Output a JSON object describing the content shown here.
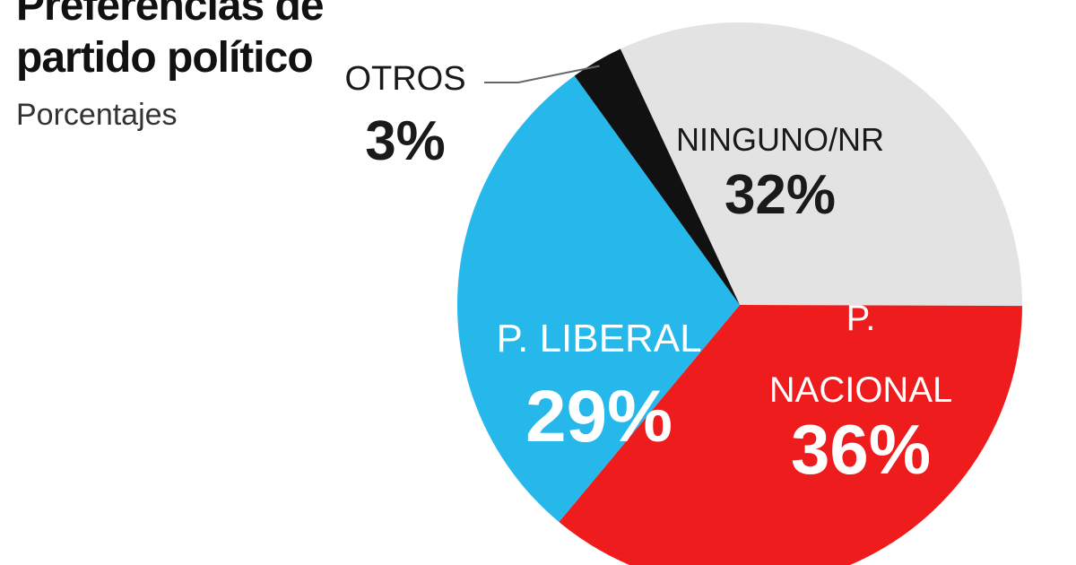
{
  "chart_data": {
    "type": "pie",
    "title": "Preferencias de partido político",
    "subtitle": "Porcentajes",
    "unit": "%",
    "slices": [
      {
        "label": [
          "NINGUNO/NR"
        ],
        "value": 32,
        "value_text": "32%",
        "color": "#e3e3e3",
        "text_color": "#1a1a1a"
      },
      {
        "label": [
          "P.",
          "NACIONAL"
        ],
        "value": 36,
        "value_text": "36%",
        "color": "#ee1c1c",
        "text_color": "#ffffff"
      },
      {
        "label": [
          "P. LIBERAL"
        ],
        "value": 29,
        "value_text": "29%",
        "color": "#26b8ea",
        "text_color": "#ffffff"
      },
      {
        "label": [
          "OTROS"
        ],
        "value": 3,
        "value_text": "3%",
        "color": "#111111",
        "text_color": "#1a1a1a",
        "callout": true
      }
    ]
  }
}
